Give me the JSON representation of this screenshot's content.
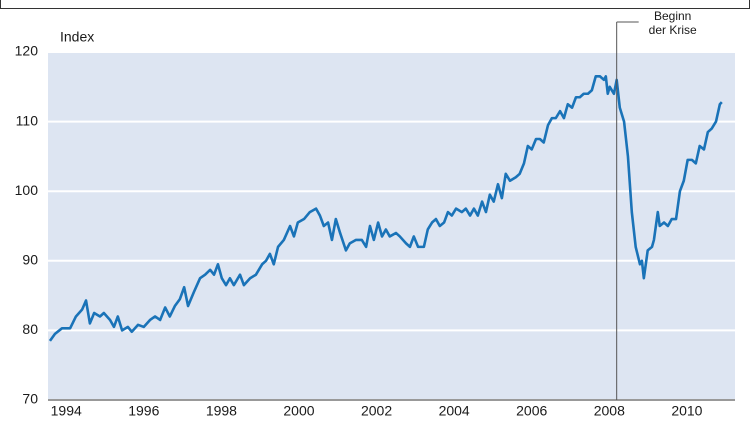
{
  "chart_data": {
    "type": "line",
    "y_label": "Index",
    "annotation": {
      "text": [
        "Beginn",
        "der Krise"
      ],
      "x": 2008.69
    },
    "xlim": [
      1994.03,
      2011.74
    ],
    "xticks": [
      {
        "value": 1994.5,
        "label": "1994"
      },
      {
        "value": 1996.5,
        "label": "1996"
      },
      {
        "value": 1998.5,
        "label": "1998"
      },
      {
        "value": 2000.5,
        "label": "2000"
      },
      {
        "value": 2002.5,
        "label": "2002"
      },
      {
        "value": 2004.5,
        "label": "2004"
      },
      {
        "value": 2006.5,
        "label": "2006"
      },
      {
        "value": 2008.5,
        "label": "2008"
      },
      {
        "value": 2010.5,
        "label": "2010"
      }
    ],
    "ylim": [
      70,
      120
    ],
    "yticks": [
      70,
      80,
      90,
      100,
      110,
      120
    ],
    "grid": true,
    "x": [
      1994.08,
      1994.21,
      1994.39,
      1994.6,
      1994.75,
      1994.91,
      1995.01,
      1995.11,
      1995.22,
      1995.37,
      1995.47,
      1995.63,
      1995.73,
      1995.83,
      1995.94,
      1996.09,
      1996.19,
      1996.35,
      1996.5,
      1996.66,
      1996.79,
      1996.92,
      1997.05,
      1997.17,
      1997.3,
      1997.43,
      1997.54,
      1997.64,
      1997.79,
      1997.95,
      1998.08,
      1998.21,
      1998.31,
      1998.41,
      1998.51,
      1998.62,
      1998.72,
      1998.82,
      1998.98,
      1999.08,
      1999.24,
      1999.39,
      1999.55,
      1999.65,
      1999.75,
      1999.85,
      1999.96,
      2000.11,
      2000.27,
      2000.37,
      2000.47,
      2000.63,
      2000.78,
      2000.94,
      2001.04,
      2001.14,
      2001.25,
      2001.35,
      2001.45,
      2001.56,
      2001.71,
      2001.81,
      2001.97,
      2002.12,
      2002.23,
      2002.33,
      2002.43,
      2002.54,
      2002.64,
      2002.74,
      2002.84,
      2003.0,
      2003.1,
      2003.26,
      2003.36,
      2003.46,
      2003.57,
      2003.72,
      2003.82,
      2003.93,
      2004.03,
      2004.13,
      2004.24,
      2004.34,
      2004.44,
      2004.55,
      2004.7,
      2004.8,
      2004.91,
      2005.01,
      2005.11,
      2005.22,
      2005.32,
      2005.42,
      2005.52,
      2005.63,
      2005.73,
      2005.83,
      2005.94,
      2006.09,
      2006.19,
      2006.3,
      2006.4,
      2006.5,
      2006.61,
      2006.71,
      2006.81,
      2006.92,
      2007.02,
      2007.12,
      2007.23,
      2007.33,
      2007.43,
      2007.54,
      2007.64,
      2007.74,
      2007.84,
      2007.95,
      2008.05,
      2008.15,
      2008.26,
      2008.36,
      2008.41,
      2008.46,
      2008.51,
      2008.62,
      2008.69,
      2008.77,
      2008.88,
      2008.98,
      2009.08,
      2009.18,
      2009.29,
      2009.34,
      2009.39,
      2009.49,
      2009.6,
      2009.65,
      2009.75,
      2009.8,
      2009.91,
      2010.01,
      2010.11,
      2010.22,
      2010.32,
      2010.42,
      2010.52,
      2010.63,
      2010.73,
      2010.83,
      2010.94,
      2011.04,
      2011.14,
      2011.25,
      2011.35,
      2011.4
    ],
    "series": [
      {
        "color": "#1a73b8",
        "values": [
          78.5,
          79.5,
          80.3,
          80.3,
          82,
          83,
          84.3,
          81,
          82.5,
          82,
          82.5,
          81.5,
          80.5,
          82,
          80,
          80.5,
          79.8,
          80.8,
          80.5,
          81.5,
          82,
          81.5,
          83.3,
          82,
          83.5,
          84.5,
          86.2,
          83.5,
          85.5,
          87.5,
          88,
          88.7,
          88,
          89.5,
          87.5,
          86.5,
          87.5,
          86.5,
          88,
          86.5,
          87.5,
          88,
          89.5,
          90,
          91,
          89.5,
          92,
          93,
          95,
          93.5,
          95.5,
          96,
          97,
          97.5,
          96.5,
          95,
          95.5,
          93,
          96,
          94,
          91.5,
          92.5,
          93,
          93,
          92,
          95,
          93,
          95.5,
          93.5,
          94.5,
          93.5,
          94,
          93.5,
          92.5,
          92,
          93.5,
          92,
          92,
          94.5,
          95.5,
          96,
          95,
          95.5,
          97,
          96.5,
          97.5,
          97,
          97.5,
          96.5,
          97.5,
          96.5,
          98.5,
          97,
          99.5,
          98.5,
          101,
          99,
          102.5,
          101.5,
          102,
          102.5,
          104,
          106.5,
          106,
          107.5,
          107.5,
          107,
          109.5,
          110.5,
          110.5,
          111.5,
          110.5,
          112.5,
          112,
          113.5,
          113.5,
          114,
          114,
          114.5,
          116.5,
          116.5,
          116,
          116.5,
          114,
          115,
          114,
          116,
          112,
          110,
          105,
          97,
          92,
          89.5,
          90,
          87.5,
          91.5,
          92,
          93,
          97,
          95,
          95.5,
          95,
          96,
          96,
          100,
          101.5,
          104.5,
          104.5,
          104,
          106.5,
          106,
          108.5,
          109,
          110,
          112.5,
          112.8
        ]
      }
    ]
  }
}
